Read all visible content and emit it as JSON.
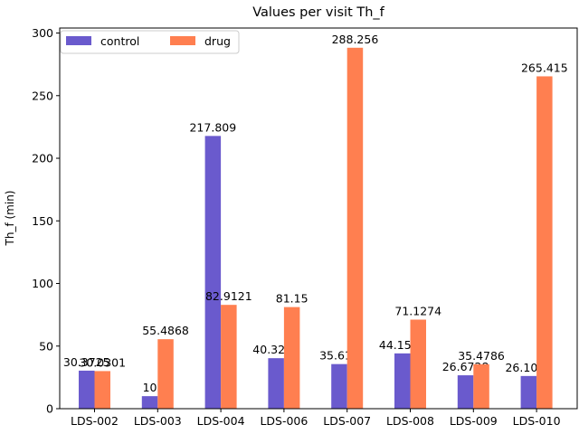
{
  "chart_data": {
    "type": "bar",
    "title": "Values per visit Th_f",
    "xlabel": "",
    "ylabel": "Th_f (min)",
    "ylim": [
      0,
      304
    ],
    "yticks": [
      0,
      50,
      100,
      150,
      200,
      250,
      300
    ],
    "grid": false,
    "legend_position": "top-left",
    "categories": [
      "LDS-002",
      "LDS-003",
      "LDS-004",
      "LDS-006",
      "LDS-007",
      "LDS-008",
      "LDS-009",
      "LDS-010"
    ],
    "series": [
      {
        "name": "control",
        "color": "#6a5acd",
        "values": [
          30.3725,
          10,
          217.809,
          40.3249,
          35.619,
          44.1543,
          26.6728,
          26.1019
        ],
        "labels": [
          "30.3725",
          "10",
          "217.809",
          "40.3249",
          "35.619",
          "44.1543",
          "26.6728",
          "26.1019"
        ]
      },
      {
        "name": "drug",
        "color": "#ff7f50",
        "values": [
          30.0301,
          55.4868,
          82.9121,
          81.15,
          288.256,
          71.1274,
          35.4786,
          265.415
        ],
        "labels": [
          "30.0301",
          "55.4868",
          "82.9121",
          "81.15",
          "288.256",
          "71.1274",
          "35.4786",
          "265.415"
        ]
      }
    ]
  }
}
